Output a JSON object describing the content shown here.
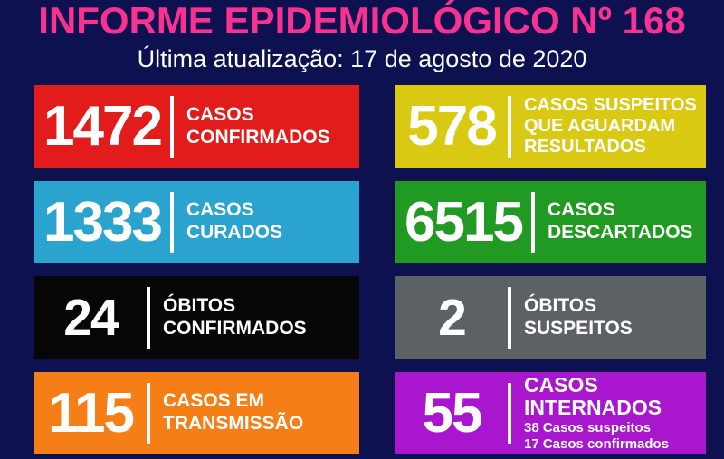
{
  "colors": {
    "background": "#0D1150",
    "title": "#F93190",
    "text": "#FFFFFF"
  },
  "header": {
    "title": "INFORME EPIDEMIOLÓGICO Nº 168",
    "subtitle": "Última atualização: 17 de agosto de 2020"
  },
  "cards": [
    {
      "id": "casos-confirmados",
      "value": "1472",
      "bg": "#E21B1B",
      "label_lines": [
        "CASOS",
        "CONFIRMADOS"
      ]
    },
    {
      "id": "casos-suspeitos",
      "value": "578",
      "bg": "#D9C912",
      "label_lines": [
        "CASOS SUSPEITOS",
        "QUE AGUARDAM",
        "RESULTADOS"
      ]
    },
    {
      "id": "casos-curados",
      "value": "1333",
      "bg": "#2AA4CF",
      "label_lines": [
        "CASOS",
        "CURADOS"
      ]
    },
    {
      "id": "casos-descartados",
      "value": "6515",
      "bg": "#209A23",
      "label_lines": [
        "CASOS",
        "DESCARTADOS"
      ]
    },
    {
      "id": "obitos-confirmados",
      "value": "24",
      "bg": "#060606",
      "label_lines": [
        "ÓBITOS",
        "CONFIRMADOS"
      ]
    },
    {
      "id": "obitos-suspeitos",
      "value": "2",
      "bg": "#5C6165",
      "label_lines": [
        "ÓBITOS",
        "SUSPEITOS"
      ]
    },
    {
      "id": "casos-em-transmissao",
      "value": "115",
      "bg": "#F57E17",
      "label_lines": [
        "CASOS EM",
        "TRANSMISSÃO"
      ]
    },
    {
      "id": "casos-internados",
      "value": "55",
      "bg": "#A816CE",
      "label_lines": [
        "CASOS INTERNADOS"
      ],
      "sub_lines": [
        "38 Casos suspeitos",
        "17 Casos confirmados"
      ]
    }
  ]
}
